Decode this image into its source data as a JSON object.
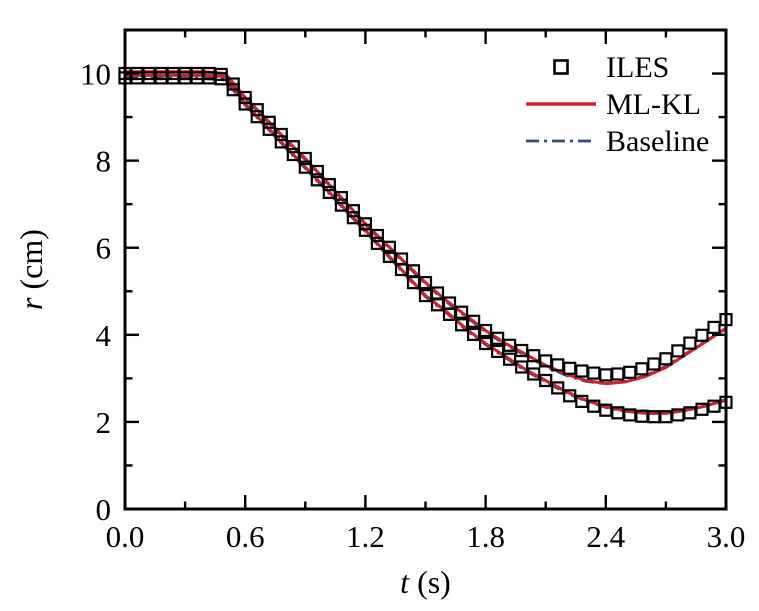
{
  "figure_title": "",
  "chart_data": {
    "type": "line",
    "title": "",
    "xlabel_var": "t",
    "xlabel_unit": " (s)",
    "ylabel_var": "r",
    "ylabel_unit": " (cm)",
    "xlim": [
      0.0,
      3.0
    ],
    "ylim": [
      0,
      11
    ],
    "grid": "off",
    "x_major_ticks": [
      0.0,
      0.6,
      1.2,
      1.8,
      2.4,
      3.0
    ],
    "x_major_tick_labels": [
      "0.0",
      "0.6",
      "1.2",
      "1.8",
      "2.4",
      "3.0"
    ],
    "x_minor_ticks": [
      0.3,
      0.9,
      1.5,
      2.1,
      2.7
    ],
    "y_major_ticks": [
      0,
      2,
      4,
      6,
      8,
      10
    ],
    "y_major_tick_labels": [
      "0",
      "2",
      "4",
      "6",
      "8",
      "10"
    ],
    "y_minor_ticks": [
      1,
      3,
      5,
      7,
      9
    ],
    "colors": {
      "iles": "#000000",
      "ml_kl": "#cb2330",
      "baseline": "#35497c",
      "axis": "#000000"
    },
    "legend": {
      "position": "top-right",
      "entries": [
        "ILES",
        "ML-KL",
        "Baseline"
      ]
    },
    "line_t": [
      0.0,
      0.1,
      0.2,
      0.3,
      0.4,
      0.5,
      0.6,
      0.7,
      0.8,
      0.9,
      1.0,
      1.1,
      1.2,
      1.3,
      1.4,
      1.5,
      1.6,
      1.7,
      1.8,
      1.9,
      2.0,
      2.1,
      2.2,
      2.3,
      2.4,
      2.5,
      2.6,
      2.7,
      2.8,
      2.9,
      3.0
    ],
    "series": [
      {
        "name": "ILES",
        "type": "scatter",
        "marker": "open-square",
        "color": "#000000",
        "branches": [
          {
            "name": "outer",
            "t": [
              0.0,
              0.06,
              0.12,
              0.18,
              0.24,
              0.3,
              0.36,
              0.42,
              0.48,
              0.54,
              0.6,
              0.66,
              0.72,
              0.78,
              0.84,
              0.9,
              0.96,
              1.02,
              1.08,
              1.14,
              1.2,
              1.26,
              1.32,
              1.38,
              1.44,
              1.5,
              1.56,
              1.62,
              1.68,
              1.74,
              1.8,
              1.86,
              1.92,
              1.98,
              2.04,
              2.1,
              2.16,
              2.22,
              2.28,
              2.34,
              2.4,
              2.46,
              2.52,
              2.58,
              2.64,
              2.7,
              2.76,
              2.82,
              2.88,
              2.94,
              3.0
            ],
            "r": [
              10,
              10,
              10,
              10,
              10,
              10,
              10,
              10,
              9.98,
              9.76,
              9.45,
              9.17,
              8.88,
              8.6,
              8.32,
              8.05,
              7.75,
              7.45,
              7.15,
              6.85,
              6.55,
              6.28,
              6.01,
              5.74,
              5.47,
              5.2,
              4.96,
              4.73,
              4.52,
              4.31,
              4.1,
              3.92,
              3.76,
              3.64,
              3.52,
              3.4,
              3.31,
              3.23,
              3.17,
              3.12,
              3.08,
              3.1,
              3.14,
              3.22,
              3.33,
              3.45,
              3.63,
              3.81,
              3.99,
              4.17,
              4.35
            ]
          },
          {
            "name": "inner",
            "t": [
              0.0,
              0.06,
              0.12,
              0.18,
              0.24,
              0.3,
              0.36,
              0.42,
              0.48,
              0.54,
              0.6,
              0.66,
              0.72,
              0.78,
              0.84,
              0.9,
              0.96,
              1.02,
              1.08,
              1.14,
              1.2,
              1.26,
              1.32,
              1.38,
              1.44,
              1.5,
              1.56,
              1.62,
              1.68,
              1.74,
              1.8,
              1.86,
              1.92,
              1.98,
              2.04,
              2.1,
              2.16,
              2.22,
              2.28,
              2.34,
              2.4,
              2.46,
              2.52,
              2.58,
              2.64,
              2.7,
              2.76,
              2.82,
              2.88,
              2.94,
              3.0
            ],
            "r": [
              9.9,
              9.9,
              9.9,
              9.9,
              9.9,
              9.9,
              9.9,
              9.9,
              9.88,
              9.63,
              9.3,
              9.01,
              8.72,
              8.43,
              8.14,
              7.85,
              7.56,
              7.27,
              6.98,
              6.69,
              6.4,
              6.1,
              5.8,
              5.5,
              5.2,
              4.9,
              4.69,
              4.47,
              4.23,
              4.01,
              3.8,
              3.62,
              3.44,
              3.26,
              3.1,
              2.95,
              2.78,
              2.6,
              2.47,
              2.36,
              2.27,
              2.21,
              2.16,
              2.13,
              2.12,
              2.12,
              2.16,
              2.21,
              2.29,
              2.36,
              2.45
            ]
          }
        ]
      },
      {
        "name": "ML-KL",
        "type": "line",
        "dash": "solid",
        "color": "#cb2330",
        "branches": [
          {
            "name": "outer",
            "r": [
              10.04,
              10.04,
              10.04,
              10.04,
              10.04,
              10.0,
              9.45,
              8.98,
              8.5,
              8.05,
              7.55,
              7.05,
              6.55,
              6.1,
              5.65,
              5.2,
              4.8,
              4.45,
              4.1,
              3.8,
              3.55,
              3.3,
              3.1,
              2.95,
              2.88,
              2.92,
              3.05,
              3.25,
              3.55,
              3.85,
              4.15
            ]
          },
          {
            "name": "inner",
            "r": [
              9.96,
              9.96,
              9.96,
              9.96,
              9.96,
              9.93,
              9.3,
              8.82,
              8.33,
              7.85,
              7.37,
              6.88,
              6.4,
              5.9,
              5.4,
              4.9,
              4.55,
              4.15,
              3.8,
              3.5,
              3.2,
              2.95,
              2.7,
              2.5,
              2.35,
              2.25,
              2.2,
              2.2,
              2.27,
              2.37,
              2.5
            ]
          }
        ]
      },
      {
        "name": "Baseline",
        "type": "line",
        "dash": "dash-dot",
        "color": "#35497c",
        "branches": [
          {
            "name": "outer",
            "r": [
              9.92,
              9.92,
              9.92,
              9.92,
              9.92,
              9.89,
              9.42,
              8.95,
              8.47,
              8.02,
              7.52,
              7.02,
              6.52,
              6.07,
              5.62,
              5.17,
              4.77,
              4.42,
              4.07,
              3.77,
              3.52,
              3.27,
              3.07,
              2.93,
              2.87,
              2.93,
              3.07,
              3.28,
              3.57,
              3.87,
              4.12
            ]
          },
          {
            "name": "inner",
            "r": [
              9.88,
              9.88,
              9.88,
              9.88,
              9.88,
              9.85,
              9.27,
              8.79,
              8.3,
              7.82,
              7.34,
              6.85,
              6.37,
              5.87,
              5.37,
              4.87,
              4.52,
              4.12,
              3.77,
              3.47,
              3.17,
              2.92,
              2.67,
              2.48,
              2.33,
              2.24,
              2.19,
              2.19,
              2.26,
              2.36,
              2.52
            ]
          }
        ]
      }
    ]
  }
}
